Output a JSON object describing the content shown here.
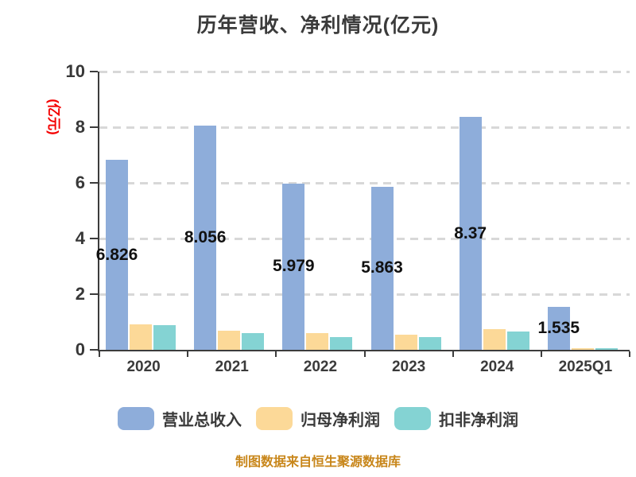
{
  "chart_data": {
    "type": "bar",
    "title": "历年营收、净利情况(亿元)",
    "ylabel": "(亿元)",
    "xlabel": "",
    "categories": [
      "2020",
      "2021",
      "2022",
      "2023",
      "2024",
      "2025Q1"
    ],
    "series": [
      {
        "name": "营业总收入",
        "key": "total-revenue",
        "color": "#8eadda",
        "values": [
          6.826,
          8.056,
          5.979,
          5.863,
          8.37,
          1.535
        ],
        "labels": [
          "6.826",
          "8.056",
          "5.979",
          "5.863",
          "8.37",
          "1.535"
        ],
        "show_labels": true
      },
      {
        "name": "归母净利润",
        "key": "net-profit",
        "color": "#fcd998",
        "values": [
          0.92,
          0.7,
          0.6,
          0.53,
          0.74,
          0.07
        ],
        "show_labels": false
      },
      {
        "name": "扣非净利润",
        "key": "deducted-net-profit",
        "color": "#84d3d3",
        "values": [
          0.88,
          0.6,
          0.47,
          0.47,
          0.66,
          0.05
        ],
        "show_labels": false
      }
    ],
    "ylim": [
      0,
      10
    ],
    "yticks": [
      0,
      2,
      4,
      6,
      8,
      10
    ],
    "grid": "horizontal-dashed",
    "legend_position": "bottom",
    "source_note": "制图数据来自恒生聚源数据库",
    "colors": {
      "axis": "#3c3c3c",
      "grid": "#d8d8d8",
      "title_text": "#3b3b3b",
      "tick_text": "#383838",
      "value_label_text": "#111111",
      "ylabel_text": "#f40000",
      "footer_text": "#c8861a"
    }
  }
}
